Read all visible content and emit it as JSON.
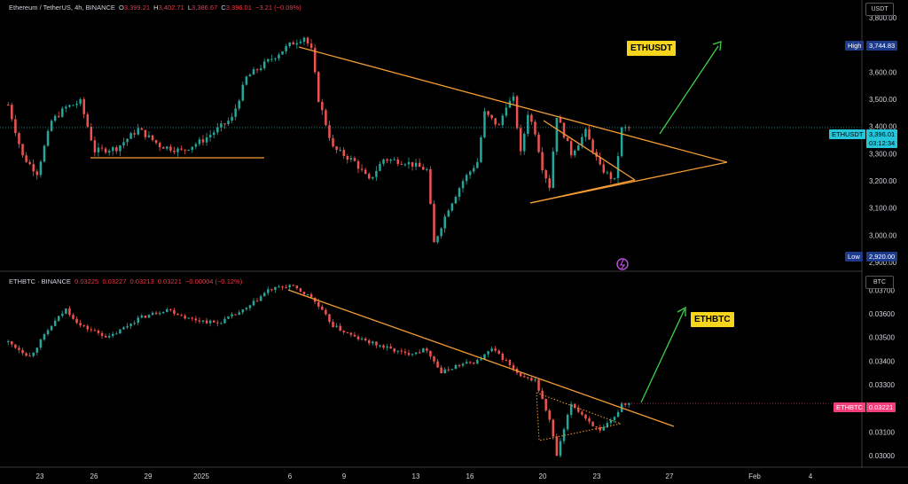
{
  "colors": {
    "background": "#000000",
    "up": "#26a69a",
    "down": "#ef5350",
    "trendline": "#f39c34",
    "arrow": "#3fd14a",
    "callout_bg": "#f7d51d",
    "eth_tag": "#26c6da",
    "ethbtc_tag": "#f23f7a",
    "high_low_tag": "#1e3a8a"
  },
  "top_panel": {
    "legend": {
      "symbol": "Ethereum / TetherUS, 4h, BINANCE",
      "open_label": "O",
      "open": "3,399.21",
      "high_label": "H",
      "high": "3,402.71",
      "low_label": "L",
      "low": "3,386.67",
      "close_label": "C",
      "close": "3,396.01",
      "change": "−3.21 (−0.09%)"
    },
    "unit": "USDT",
    "callout": "ETHUSDT",
    "price_tag": {
      "symbol": "ETHUSDT",
      "price": "3,396.01",
      "countdown": "03:12:34"
    },
    "high_tag": {
      "label": "High",
      "value": "3,744.83"
    },
    "low_tag": {
      "label": "Low",
      "value": "2,920.00"
    },
    "chart_data": {
      "type": "candlestick",
      "title": "Ethereum / TetherUS, 4h, BINANCE",
      "y_ticks": [
        "3,800.00",
        "3,700.00",
        "3,600.00",
        "3,500.00",
        "3,400.00",
        "3,300.00",
        "3,200.00",
        "3,100.00",
        "3,000.00",
        "2,900.00"
      ],
      "ylim": [
        2900,
        3800
      ],
      "grid": false,
      "last_close": 3396.01,
      "high": 3744.83,
      "low": 2920.0,
      "path_points": [
        [
          0,
          3480
        ],
        [
          4,
          3290
        ],
        [
          8,
          3230
        ],
        [
          12,
          3420
        ],
        [
          16,
          3470
        ],
        [
          20,
          3490
        ],
        [
          24,
          3310
        ],
        [
          30,
          3320
        ],
        [
          36,
          3390
        ],
        [
          42,
          3330
        ],
        [
          48,
          3310
        ],
        [
          54,
          3350
        ],
        [
          62,
          3430
        ],
        [
          66,
          3580
        ],
        [
          72,
          3640
        ],
        [
          78,
          3700
        ],
        [
          82,
          3730
        ],
        [
          84,
          3680
        ],
        [
          86,
          3500
        ],
        [
          90,
          3320
        ],
        [
          96,
          3270
        ],
        [
          100,
          3200
        ],
        [
          104,
          3280
        ],
        [
          110,
          3270
        ],
        [
          116,
          3240
        ],
        [
          118,
          2970
        ],
        [
          122,
          3100
        ],
        [
          126,
          3200
        ],
        [
          130,
          3270
        ],
        [
          132,
          3450
        ],
        [
          136,
          3400
        ],
        [
          138,
          3480
        ],
        [
          140,
          3500
        ],
        [
          142,
          3300
        ],
        [
          144,
          3450
        ],
        [
          146,
          3380
        ],
        [
          148,
          3250
        ],
        [
          150,
          3180
        ],
        [
          152,
          3440
        ],
        [
          156,
          3300
        ],
        [
          160,
          3380
        ],
        [
          164,
          3250
        ],
        [
          168,
          3200
        ],
        [
          170,
          3390
        ],
        [
          172,
          3396
        ]
      ]
    }
  },
  "bottom_panel": {
    "legend": {
      "symbol": "ETHBTC · BINANCE",
      "open": "0.03225",
      "high": "0.03227",
      "low": "0.03213",
      "close": "0.03221",
      "change": "−0.00004 (−0.12%)"
    },
    "unit": "BTC",
    "callout": "ETHBTC",
    "price_tag": {
      "symbol": "ETHBTC",
      "price": "0.03221"
    },
    "chart_data": {
      "type": "candlestick",
      "title": "ETHBTC · BINANCE",
      "y_ticks": [
        "0.03700",
        "0.03600",
        "0.03500",
        "0.03400",
        "0.03300",
        "0.03200",
        "0.03100",
        "0.03000"
      ],
      "ylim": [
        0.0297,
        0.0372
      ],
      "grid": false,
      "last_close": 0.03221,
      "path_points": [
        [
          0,
          0.0348
        ],
        [
          6,
          0.0342
        ],
        [
          12,
          0.0355
        ],
        [
          16,
          0.0362
        ],
        [
          20,
          0.0355
        ],
        [
          28,
          0.035
        ],
        [
          36,
          0.0358
        ],
        [
          44,
          0.0362
        ],
        [
          50,
          0.0358
        ],
        [
          58,
          0.0356
        ],
        [
          66,
          0.0362
        ],
        [
          72,
          0.037
        ],
        [
          78,
          0.0372
        ],
        [
          84,
          0.0367
        ],
        [
          90,
          0.0355
        ],
        [
          96,
          0.035
        ],
        [
          104,
          0.0346
        ],
        [
          110,
          0.0343
        ],
        [
          116,
          0.0345
        ],
        [
          120,
          0.0335
        ],
        [
          124,
          0.0338
        ],
        [
          130,
          0.034
        ],
        [
          134,
          0.0345
        ],
        [
          138,
          0.034
        ],
        [
          142,
          0.0333
        ],
        [
          146,
          0.0332
        ],
        [
          150,
          0.0315
        ],
        [
          152,
          0.03
        ],
        [
          156,
          0.0322
        ],
        [
          160,
          0.0316
        ],
        [
          164,
          0.031
        ],
        [
          168,
          0.0316
        ],
        [
          170,
          0.0322
        ],
        [
          172,
          0.03221
        ]
      ]
    }
  },
  "x_axis": {
    "ticks": [
      "23",
      "26",
      "29",
      "2025",
      "6",
      "9",
      "13",
      "16",
      "20",
      "23",
      "27",
      "Feb",
      "4"
    ]
  }
}
